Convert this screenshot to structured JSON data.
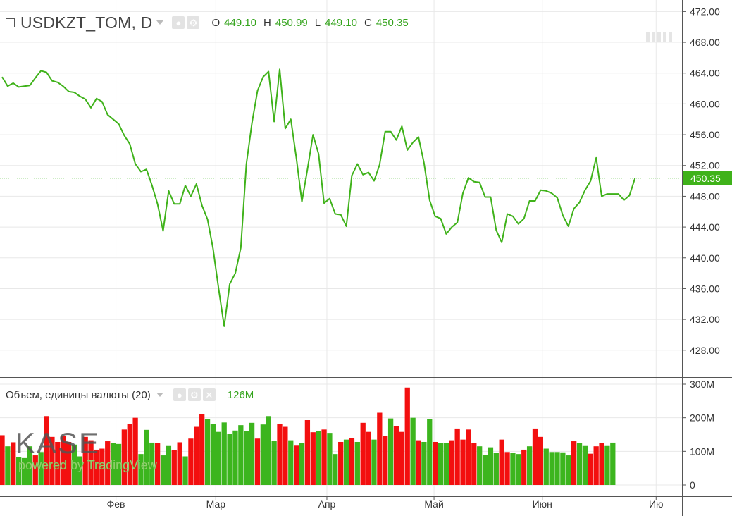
{
  "header": {
    "symbol": "USDKZT_TOM, D",
    "ohlc": {
      "o_label": "O",
      "o_value": "449.10",
      "h_label": "H",
      "h_value": "450.99",
      "l_label": "L",
      "l_value": "449.10",
      "c_label": "C",
      "c_value": "450.35"
    }
  },
  "volume_legend": {
    "title": "Объем, единицы валюты (20)",
    "value": "126M"
  },
  "watermark": {
    "logo_text": "KASE",
    "powered_by": "powered by TradingView"
  },
  "colors": {
    "line": "#3fb21a",
    "up_volume": "#3cb51e",
    "down_volume": "#f30f0f",
    "last_price_tag": "#3fb21a",
    "grid": "#e8e8e8"
  },
  "icons": [
    "collapse-icon",
    "caret-down-icon",
    "eye-icon",
    "gear-icon",
    "close-icon"
  ],
  "chart_data": {
    "type": "line",
    "price": {
      "y_ticks": [
        "472.00",
        "468.00",
        "464.00",
        "460.00",
        "456.00",
        "452.00",
        "448.00",
        "444.00",
        "440.00",
        "436.00",
        "432.00",
        "428.00"
      ],
      "ylim": [
        424.5,
        473.5
      ],
      "last_value": 450.35,
      "last_label": "450.35",
      "values": [
        463.5,
        462.3,
        462.7,
        462.2,
        462.3,
        462.4,
        463.4,
        464.3,
        464.1,
        463.0,
        462.8,
        462.3,
        461.6,
        461.5,
        461.0,
        460.6,
        459.5,
        460.7,
        460.3,
        458.6,
        458.0,
        457.4,
        455.9,
        454.8,
        452.2,
        451.2,
        451.5,
        449.4,
        447.0,
        443.5,
        448.7,
        447.0,
        447.0,
        449.4,
        448.0,
        449.6,
        446.8,
        445.0,
        441.2,
        436.0,
        431.1,
        436.6,
        438.0,
        441.3,
        452.2,
        457.5,
        461.7,
        463.5,
        464.2,
        457.7,
        464.5,
        456.8,
        458.0,
        453.0,
        447.3,
        451.5,
        456.0,
        453.5,
        447.1,
        447.7,
        445.7,
        445.6,
        444.1,
        450.7,
        452.2,
        450.8,
        451.1,
        450.0,
        452.1,
        456.4,
        456.4,
        455.3,
        457.1,
        454.0,
        455.0,
        455.7,
        452.3,
        447.5,
        445.4,
        445.1,
        443.1,
        444.0,
        444.6,
        448.4,
        450.4,
        449.9,
        449.8,
        447.9,
        447.9,
        443.6,
        442.0,
        445.7,
        445.4,
        444.4,
        445.1,
        447.4,
        447.4,
        448.8,
        448.7,
        448.4,
        447.8,
        445.5,
        444.1,
        446.4,
        447.2,
        448.8,
        450.0,
        453.0,
        448.0,
        448.3,
        448.3,
        448.3,
        447.5,
        448.1,
        450.35
      ]
    },
    "volume": {
      "y_ticks": [
        "300M",
        "200M",
        "100M",
        "0"
      ],
      "ylim": [
        0,
        310
      ],
      "unit": "M",
      "bars": [
        {
          "v": 148,
          "up": false
        },
        {
          "v": 115,
          "up": true
        },
        {
          "v": 127,
          "up": false
        },
        {
          "v": 82,
          "up": true
        },
        {
          "v": 80,
          "up": true
        },
        {
          "v": 115,
          "up": true
        },
        {
          "v": 88,
          "up": false
        },
        {
          "v": 98,
          "up": true
        },
        {
          "v": 205,
          "up": false
        },
        {
          "v": 143,
          "up": false
        },
        {
          "v": 128,
          "up": false
        },
        {
          "v": 145,
          "up": false
        },
        {
          "v": 128,
          "up": false
        },
        {
          "v": 120,
          "up": true
        },
        {
          "v": 85,
          "up": true
        },
        {
          "v": 143,
          "up": false
        },
        {
          "v": 133,
          "up": false
        },
        {
          "v": 105,
          "up": false
        },
        {
          "v": 108,
          "up": false
        },
        {
          "v": 130,
          "up": false
        },
        {
          "v": 125,
          "up": true
        },
        {
          "v": 122,
          "up": true
        },
        {
          "v": 165,
          "up": false
        },
        {
          "v": 182,
          "up": false
        },
        {
          "v": 200,
          "up": false
        },
        {
          "v": 92,
          "up": true
        },
        {
          "v": 164,
          "up": true
        },
        {
          "v": 126,
          "up": true
        },
        {
          "v": 124,
          "up": false
        },
        {
          "v": 88,
          "up": true
        },
        {
          "v": 118,
          "up": true
        },
        {
          "v": 104,
          "up": false
        },
        {
          "v": 127,
          "up": false
        },
        {
          "v": 85,
          "up": true
        },
        {
          "v": 138,
          "up": false
        },
        {
          "v": 173,
          "up": false
        },
        {
          "v": 210,
          "up": false
        },
        {
          "v": 197,
          "up": true
        },
        {
          "v": 182,
          "up": true
        },
        {
          "v": 158,
          "up": true
        },
        {
          "v": 186,
          "up": true
        },
        {
          "v": 153,
          "up": true
        },
        {
          "v": 162,
          "up": true
        },
        {
          "v": 178,
          "up": true
        },
        {
          "v": 160,
          "up": true
        },
        {
          "v": 185,
          "up": true
        },
        {
          "v": 138,
          "up": false
        },
        {
          "v": 180,
          "up": true
        },
        {
          "v": 205,
          "up": true
        },
        {
          "v": 132,
          "up": true
        },
        {
          "v": 182,
          "up": false
        },
        {
          "v": 173,
          "up": false
        },
        {
          "v": 133,
          "up": true
        },
        {
          "v": 119,
          "up": false
        },
        {
          "v": 125,
          "up": true
        },
        {
          "v": 193,
          "up": false
        },
        {
          "v": 157,
          "up": false
        },
        {
          "v": 160,
          "up": true
        },
        {
          "v": 165,
          "up": false
        },
        {
          "v": 155,
          "up": true
        },
        {
          "v": 92,
          "up": true
        },
        {
          "v": 128,
          "up": false
        },
        {
          "v": 135,
          "up": true
        },
        {
          "v": 140,
          "up": false
        },
        {
          "v": 128,
          "up": true
        },
        {
          "v": 185,
          "up": false
        },
        {
          "v": 158,
          "up": false
        },
        {
          "v": 135,
          "up": true
        },
        {
          "v": 215,
          "up": false
        },
        {
          "v": 145,
          "up": false
        },
        {
          "v": 198,
          "up": true
        },
        {
          "v": 175,
          "up": false
        },
        {
          "v": 158,
          "up": false
        },
        {
          "v": 290,
          "up": false
        },
        {
          "v": 200,
          "up": true
        },
        {
          "v": 133,
          "up": false
        },
        {
          "v": 128,
          "up": true
        },
        {
          "v": 197,
          "up": true
        },
        {
          "v": 128,
          "up": false
        },
        {
          "v": 125,
          "up": true
        },
        {
          "v": 125,
          "up": true
        },
        {
          "v": 133,
          "up": false
        },
        {
          "v": 168,
          "up": false
        },
        {
          "v": 135,
          "up": false
        },
        {
          "v": 165,
          "up": false
        },
        {
          "v": 125,
          "up": false
        },
        {
          "v": 115,
          "up": true
        },
        {
          "v": 90,
          "up": true
        },
        {
          "v": 112,
          "up": true
        },
        {
          "v": 95,
          "up": true
        },
        {
          "v": 135,
          "up": false
        },
        {
          "v": 98,
          "up": false
        },
        {
          "v": 95,
          "up": true
        },
        {
          "v": 92,
          "up": true
        },
        {
          "v": 105,
          "up": false
        },
        {
          "v": 115,
          "up": true
        },
        {
          "v": 168,
          "up": false
        },
        {
          "v": 143,
          "up": false
        },
        {
          "v": 108,
          "up": true
        },
        {
          "v": 98,
          "up": true
        },
        {
          "v": 98,
          "up": true
        },
        {
          "v": 97,
          "up": true
        },
        {
          "v": 88,
          "up": true
        },
        {
          "v": 130,
          "up": false
        },
        {
          "v": 125,
          "up": true
        },
        {
          "v": 118,
          "up": true
        },
        {
          "v": 93,
          "up": false
        },
        {
          "v": 115,
          "up": false
        },
        {
          "v": 125,
          "up": false
        },
        {
          "v": 118,
          "up": true
        },
        {
          "v": 126,
          "up": true
        }
      ]
    },
    "x_ticks": [
      {
        "label": "Фев",
        "index": 20.5
      },
      {
        "label": "Мар",
        "index": 38.5
      },
      {
        "label": "Апр",
        "index": 58.5
      },
      {
        "label": "Май",
        "index": 77.8
      },
      {
        "label": "Июн",
        "index": 97.3
      },
      {
        "label": "Ию",
        "index": 117.8
      }
    ],
    "grid": true,
    "legend": "top-left"
  }
}
